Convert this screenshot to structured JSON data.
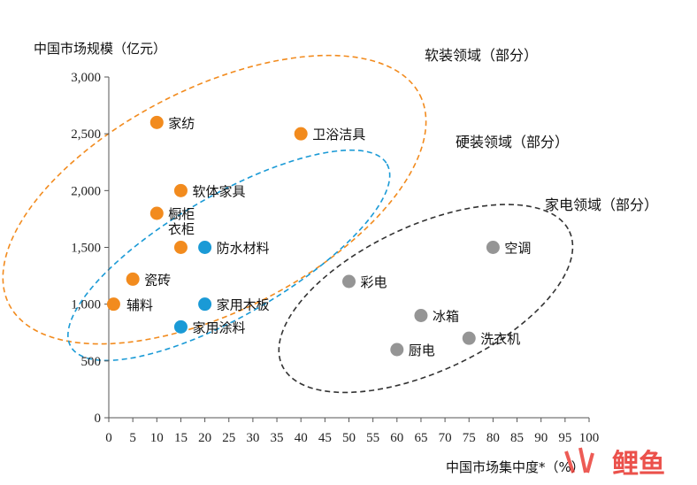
{
  "chart_data": {
    "type": "scatter",
    "ylabel": "中国市场规模（亿元）",
    "xlabel": "中国市场集中度*（%）",
    "xlim": [
      0,
      100
    ],
    "ylim": [
      0,
      3000
    ],
    "xticks": [
      "0",
      "5",
      "10",
      "15",
      "20",
      "25",
      "30",
      "35",
      "40",
      "45",
      "50",
      "55",
      "60",
      "65",
      "70",
      "75",
      "80",
      "85",
      "90",
      "95",
      "100"
    ],
    "yticks": [
      "0",
      "500",
      "1,000",
      "1,500",
      "2,000",
      "2,500",
      "3,000"
    ],
    "colors": {
      "soft": "#f28b1e",
      "hard": "#1a9ad6",
      "appliance": "#959595",
      "axis": "#555555"
    },
    "groups": [
      {
        "name": "软装领域（部分）",
        "color_key": "soft",
        "dash_color": "#f28b1e",
        "ellipse": {
          "cx": 22,
          "cy": 1920,
          "rx": 48,
          "ry": 980,
          "angle_deg": -27
        }
      },
      {
        "name": "硬装领域（部分）",
        "color_key": "hard",
        "dash_color": "#1a9ad6",
        "ellipse": {
          "cx": 25,
          "cy": 1430,
          "rx": 38,
          "ry": 530,
          "angle_deg": -30
        }
      },
      {
        "name": "家电领域（部分）",
        "color_key": "appliance",
        "dash_color": "#333333",
        "ellipse": {
          "cx": 66,
          "cy": 1050,
          "rx": 33,
          "ry": 640,
          "angle_deg": -25
        }
      }
    ],
    "points": [
      {
        "label": "家纺",
        "x": 10,
        "y": 2600,
        "color_key": "soft"
      },
      {
        "label": "卫浴洁具",
        "x": 40,
        "y": 2500,
        "color_key": "soft"
      },
      {
        "label": "软体家具",
        "x": 15,
        "y": 2000,
        "color_key": "soft"
      },
      {
        "label": "橱柜",
        "x": 10,
        "y": 1800,
        "color_key": "soft"
      },
      {
        "label": "衣柜",
        "x": 15,
        "y": 1500,
        "color_key": "soft"
      },
      {
        "label": "瓷砖",
        "x": 5,
        "y": 1220,
        "color_key": "soft"
      },
      {
        "label": "辅料",
        "x": 1,
        "y": 1000,
        "color_key": "soft"
      },
      {
        "label": "防水材料",
        "x": 20,
        "y": 1500,
        "color_key": "hard"
      },
      {
        "label": "家用木板",
        "x": 20,
        "y": 1000,
        "color_key": "hard"
      },
      {
        "label": "家用涂料",
        "x": 15,
        "y": 800,
        "color_key": "hard"
      },
      {
        "label": "空调",
        "x": 80,
        "y": 1500,
        "color_key": "appliance"
      },
      {
        "label": "彩电",
        "x": 50,
        "y": 1200,
        "color_key": "appliance"
      },
      {
        "label": "冰箱",
        "x": 65,
        "y": 900,
        "color_key": "appliance"
      },
      {
        "label": "洗衣机",
        "x": 75,
        "y": 700,
        "color_key": "appliance"
      },
      {
        "label": "厨电",
        "x": 60,
        "y": 600,
        "color_key": "appliance"
      }
    ]
  },
  "watermark": {
    "text": "鲤鱼"
  }
}
